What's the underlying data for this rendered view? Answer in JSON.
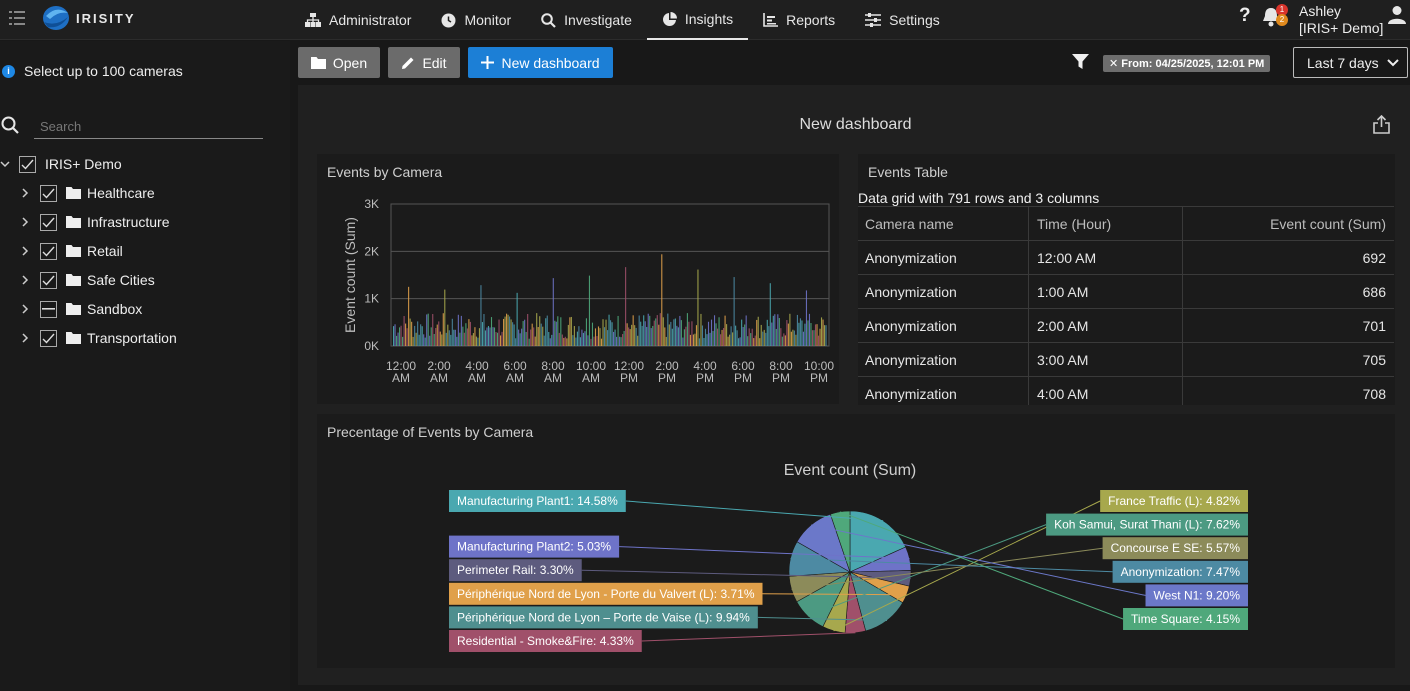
{
  "app": {
    "logo_text": "IRISITY"
  },
  "nav": [
    {
      "label": "Administrator",
      "icon": "sitemap-icon"
    },
    {
      "label": "Monitor",
      "icon": "clock-icon"
    },
    {
      "label": "Investigate",
      "icon": "search-icon"
    },
    {
      "label": "Insights",
      "icon": "pie-chart-icon",
      "active": true
    },
    {
      "label": "Reports",
      "icon": "bar-report-icon"
    },
    {
      "label": "Settings",
      "icon": "sliders-icon"
    }
  ],
  "header": {
    "help": "?",
    "notifications": {
      "red": "1",
      "orange": "2"
    },
    "user_name": "Ashley",
    "user_org": "[IRIS+ Demo]"
  },
  "sidebar": {
    "note": "Select up to 100 cameras",
    "search_placeholder": "Search",
    "root": {
      "label": "IRIS+ Demo",
      "checked": true
    },
    "groups": [
      {
        "label": "Healthcare",
        "state": "checked"
      },
      {
        "label": "Infrastructure",
        "state": "checked"
      },
      {
        "label": "Retail",
        "state": "checked"
      },
      {
        "label": "Safe Cities",
        "state": "checked"
      },
      {
        "label": "Sandbox",
        "state": "partial"
      },
      {
        "label": "Transportation",
        "state": "checked"
      }
    ]
  },
  "toolbar": {
    "open_label": "Open",
    "edit_label": "Edit",
    "new_label": "New dashboard",
    "filter_chip": "✕ From: 04/25/2025, 12:01 PM",
    "range_label": "Last 7 days"
  },
  "dashboard": {
    "title": "New dashboard",
    "bar_panel_title": "Events by Camera",
    "table_panel_title": "Events Table",
    "table_caption": "Data grid with 791 rows and 3 columns",
    "pie_panel_title": "Precentage of Events by Camera"
  },
  "table": {
    "headers": [
      "Camera name",
      "Time (Hour)",
      "Event count (Sum)"
    ],
    "rows": [
      [
        "Anonymization",
        "12:00 AM",
        "692"
      ],
      [
        "Anonymization",
        "1:00 AM",
        "686"
      ],
      [
        "Anonymization",
        "2:00 AM",
        "701"
      ],
      [
        "Anonymization",
        "3:00 AM",
        "705"
      ],
      [
        "Anonymization",
        "4:00 AM",
        "708"
      ]
    ]
  },
  "colors": {
    "accent": "#1c7fd6",
    "badge_red": "#d9342b",
    "badge_orange": "#e08a1e"
  },
  "chart_data": [
    {
      "type": "bar",
      "title": "",
      "ylabel": "Event count (Sum)",
      "ylim": [
        0,
        3000
      ],
      "yticks": [
        "0K",
        "1K",
        "2K",
        "3K"
      ],
      "categories": [
        "12:00 AM",
        "2:00 AM",
        "4:00 AM",
        "6:00 AM",
        "8:00 AM",
        "10:00 AM",
        "12:00 PM",
        "2:00 PM",
        "4:00 PM",
        "6:00 PM",
        "8:00 PM",
        "10:00 PM"
      ],
      "grid": true,
      "peaks": [
        {
          "hour": "12:00 AM",
          "value": 1400
        },
        {
          "hour": "2:00 AM",
          "value": 1300
        },
        {
          "hour": "4:00 AM",
          "value": 1350
        },
        {
          "hour": "6:00 AM",
          "value": 1250
        },
        {
          "hour": "8:00 AM",
          "value": 1500
        },
        {
          "hour": "10:00 AM",
          "value": 1700
        },
        {
          "hour": "12:00 PM",
          "value": 1950
        },
        {
          "hour": "2:00 PM",
          "value": 2050
        },
        {
          "hour": "4:00 PM",
          "value": 1800
        },
        {
          "hour": "6:00 PM",
          "value": 1600
        },
        {
          "hour": "8:00 PM",
          "value": 1500
        },
        {
          "hour": "10:00 PM",
          "value": 1350
        }
      ]
    },
    {
      "type": "pie",
      "title": "Event count (Sum)",
      "slices": [
        {
          "label": "Manufacturing Plant1: 14.58%",
          "value": 14.58,
          "color": "#4aa8b0",
          "side": "left"
        },
        {
          "label": "Manufacturing Plant2: 5.03%",
          "value": 5.03,
          "color": "#6e73c8",
          "side": "left"
        },
        {
          "label": "Perimeter Rail: 3.30%",
          "value": 3.3,
          "color": "#5d5b7e",
          "side": "left"
        },
        {
          "label": "Périphérique Nord de Lyon - Porte du Valvert (L): 3.71%",
          "value": 3.71,
          "color": "#e0a04a",
          "side": "left"
        },
        {
          "label": "Périphérique Nord de Lyon – Porte de Vaise (L): 9.94%",
          "value": 9.94,
          "color": "#4f8f8f",
          "side": "left"
        },
        {
          "label": "Residential - Smoke&Fire: 4.33%",
          "value": 4.33,
          "color": "#a0506a",
          "side": "left"
        },
        {
          "label": "France Traffic (L): 4.82%",
          "value": 4.82,
          "color": "#a7a84d",
          "side": "right"
        },
        {
          "label": "Koh Samui, Surat Thani (L): 7.62%",
          "value": 7.62,
          "color": "#4c9a82",
          "side": "right"
        },
        {
          "label": "Concourse E SE: 5.57%",
          "value": 5.57,
          "color": "#8c8b5a",
          "side": "right"
        },
        {
          "label": "Anonymization: 7.47%",
          "value": 7.47,
          "color": "#4d8aa3",
          "side": "right"
        },
        {
          "label": "West N1: 9.20%",
          "value": 9.2,
          "color": "#6b78c9",
          "side": "right"
        },
        {
          "label": "Time Square: 4.15%",
          "value": 4.15,
          "color": "#4fa87b",
          "side": "right"
        }
      ]
    }
  ]
}
